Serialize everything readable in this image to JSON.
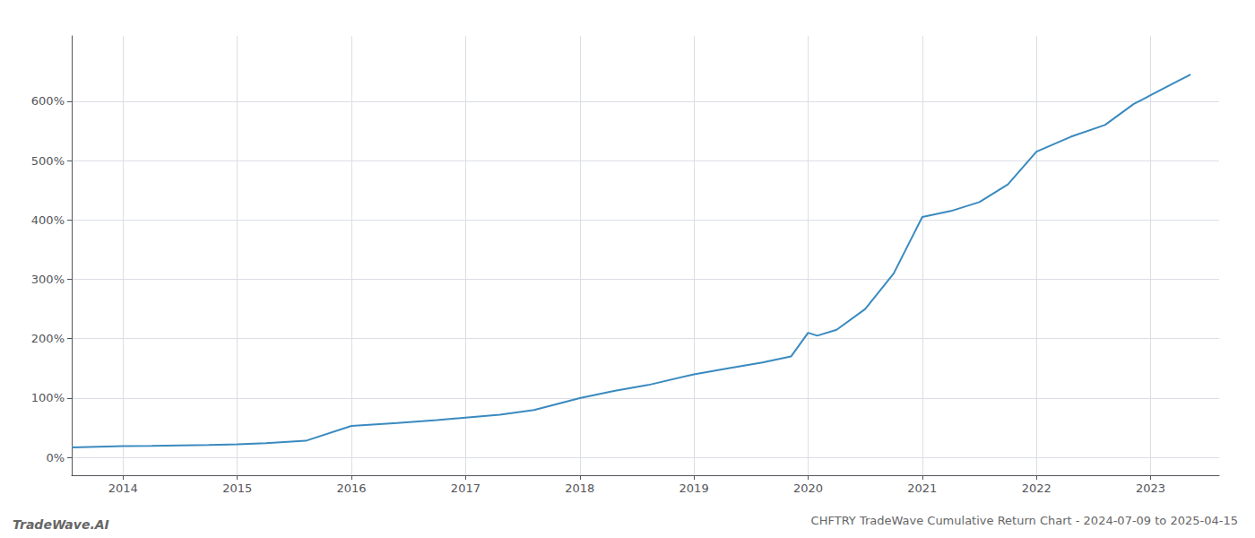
{
  "chart_data": {
    "type": "line",
    "title": "CHFTRY TradeWave Cumulative Return Chart - 2024-07-09 to 2025-04-15",
    "annotations": [
      "TradeWave.AI"
    ],
    "x": [
      2013.55,
      2014.0,
      2014.25,
      2014.75,
      2015.0,
      2015.25,
      2015.6,
      2016.0,
      2016.4,
      2016.75,
      2017.0,
      2017.3,
      2017.6,
      2018.0,
      2018.3,
      2018.6,
      2019.0,
      2019.3,
      2019.6,
      2019.85,
      2020.0,
      2020.08,
      2020.25,
      2020.5,
      2020.75,
      2021.0,
      2021.25,
      2021.5,
      2021.75,
      2022.0,
      2022.3,
      2022.6,
      2022.85,
      2023.0,
      2023.2,
      2023.35
    ],
    "values": [
      17,
      19,
      19.5,
      21,
      22,
      24,
      28,
      53,
      58,
      63,
      67,
      72,
      80,
      100,
      112,
      122,
      140,
      150,
      160,
      170,
      210,
      205,
      215,
      250,
      310,
      405,
      415,
      430,
      460,
      515,
      540,
      560,
      595,
      610,
      630,
      645
    ],
    "color": "#3a8abf",
    "xlim": [
      2013.55,
      2023.6
    ],
    "xticks": [
      2014,
      2015,
      2016,
      2017,
      2018,
      2019,
      2020,
      2021,
      2022,
      2023
    ],
    "ylim": [
      -30,
      710
    ],
    "yticks": [
      {
        "value": 0,
        "label": "0%"
      },
      {
        "value": 100,
        "label": "100%"
      },
      {
        "value": 200,
        "label": "200%"
      },
      {
        "value": 300,
        "label": "300%"
      },
      {
        "value": 400,
        "label": "400%"
      },
      {
        "value": 500,
        "label": "500%"
      },
      {
        "value": 600,
        "label": "600%"
      }
    ],
    "grid": true
  }
}
